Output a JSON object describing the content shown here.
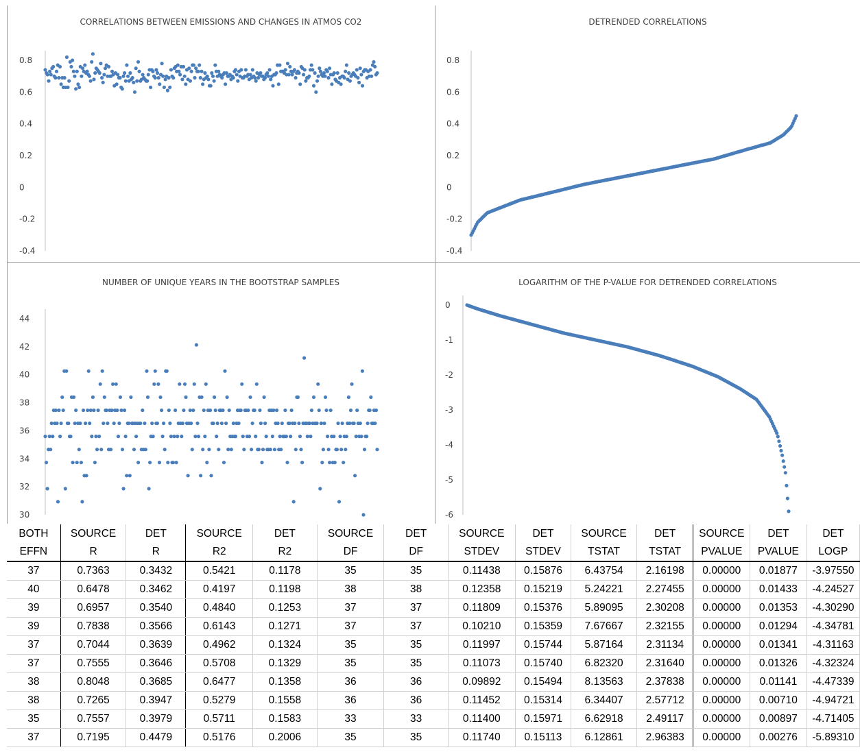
{
  "chart_data": [
    {
      "type": "scatter",
      "title": "CORRELATIONS  BETWEEN  EMISSIONS  AND  CHANGES   IN ATMOS  CO2",
      "ylim": [
        -0.4,
        0.8
      ],
      "yticks": [
        "0.8",
        "0.6",
        "0.4",
        "0.2",
        "0",
        "-0.2",
        "-0.4"
      ],
      "grid": false,
      "values": [
        0.74,
        0.72,
        0.71,
        0.67,
        0.73,
        0.71,
        0.75,
        0.76,
        0.7,
        0.69,
        0.73,
        0.77,
        0.69,
        0.76,
        0.65,
        0.69,
        0.63,
        0.69,
        0.63,
        0.82,
        0.63,
        0.67,
        0.79,
        0.76,
        0.8,
        0.73,
        0.7,
        0.62,
        0.73,
        0.65,
        0.63,
        0.76,
        0.7,
        0.75,
        0.73,
        0.77,
        0.72,
        0.73,
        0.71,
        0.7,
        0.67,
        0.79,
        0.84,
        0.68,
        0.72,
        0.75,
        0.74,
        0.73,
        0.72,
        0.78,
        0.69,
        0.66,
        0.71,
        0.75,
        0.77,
        0.7,
        0.76,
        0.7,
        0.7,
        0.73,
        0.71,
        0.64,
        0.72,
        0.65,
        0.71,
        0.69,
        0.69,
        0.63,
        0.62,
        0.7,
        0.72,
        0.67,
        0.77,
        0.7,
        0.67,
        0.72,
        0.68,
        0.69,
        0.66,
        0.6,
        0.75,
        0.67,
        0.79,
        0.73,
        0.67,
        0.68,
        0.71,
        0.69,
        0.68,
        0.67,
        0.67,
        0.71,
        0.74,
        0.63,
        0.74,
        0.73,
        0.7,
        0.69,
        0.74,
        0.72,
        0.69,
        0.65,
        0.71,
        0.78,
        0.7,
        0.63,
        0.68,
        0.7,
        0.61,
        0.69,
        0.63,
        0.74,
        0.7,
        0.69,
        0.75,
        0.76,
        0.73,
        0.77,
        0.73,
        0.71,
        0.76,
        0.68,
        0.76,
        0.7,
        0.65,
        0.74,
        0.68,
        0.75,
        0.67,
        0.73,
        0.77,
        0.77,
        0.69,
        0.75,
        0.73,
        0.73,
        0.77,
        0.69,
        0.73,
        0.65,
        0.68,
        0.72,
        0.69,
        0.7,
        0.68,
        0.64,
        0.64,
        0.72,
        0.7,
        0.67,
        0.77,
        0.73,
        0.7,
        0.73,
        0.71,
        0.7,
        0.69,
        0.71,
        0.72,
        0.65,
        0.72,
        0.7,
        0.7,
        0.71,
        0.68,
        0.7,
        0.69,
        0.73,
        0.74,
        0.71,
        0.67,
        0.73,
        0.7,
        0.74,
        0.69,
        0.69,
        0.7,
        0.74,
        0.7,
        0.71,
        0.68,
        0.71,
        0.69,
        0.74,
        0.7,
        0.69,
        0.67,
        0.72,
        0.69,
        0.71,
        0.72,
        0.7,
        0.7,
        0.68,
        0.69,
        0.71,
        0.72,
        0.7,
        0.74,
        0.68,
        0.7,
        0.64,
        0.71,
        0.71,
        0.72,
        0.77,
        0.65,
        0.77,
        0.73,
        0.73,
        0.73,
        0.72,
        0.74,
        0.71,
        0.78,
        0.71,
        0.76,
        0.73,
        0.71,
        0.73,
        0.74,
        0.69,
        0.72,
        0.73,
        0.72,
        0.65,
        0.76,
        0.75,
        0.71,
        0.74,
        0.67,
        0.69,
        0.69,
        0.7,
        0.74,
        0.77,
        0.74,
        0.64,
        0.72,
        0.6,
        0.67,
        0.7,
        0.75,
        0.73,
        0.71,
        0.7,
        0.72,
        0.7,
        0.74,
        0.73,
        0.69,
        0.75,
        0.71,
        0.65,
        0.71,
        0.72,
        0.68,
        0.67,
        0.72,
        0.66,
        0.69,
        0.65,
        0.7,
        0.7,
        0.69,
        0.73,
        0.77,
        0.68,
        0.72,
        0.67,
        0.7,
        0.71,
        0.72,
        0.71,
        0.7,
        0.74,
        0.69,
        0.66,
        0.75,
        0.71,
        0.64,
        0.73,
        0.74,
        0.74,
        0.69,
        0.73,
        0.7,
        0.74,
        0.7,
        0.77,
        0.79,
        0.76,
        0.71,
        0.72
      ]
    },
    {
      "type": "scatter",
      "title": "DETRENDED  CORRELATIONS",
      "ylim": [
        -0.4,
        0.8
      ],
      "yticks": [
        "0.8",
        "0.6",
        "0.4",
        "0.2",
        "0",
        "-0.2",
        "-0.4"
      ],
      "grid": false,
      "shape": "sorted ascending",
      "points": 300,
      "anchors": [
        [
          0,
          -0.3
        ],
        [
          0.02,
          -0.22
        ],
        [
          0.05,
          -0.16
        ],
        [
          0.1,
          -0.12
        ],
        [
          0.15,
          -0.08
        ],
        [
          0.25,
          -0.03
        ],
        [
          0.35,
          0.02
        ],
        [
          0.45,
          0.06
        ],
        [
          0.55,
          0.1
        ],
        [
          0.65,
          0.14
        ],
        [
          0.75,
          0.18
        ],
        [
          0.85,
          0.24
        ],
        [
          0.92,
          0.28
        ],
        [
          0.96,
          0.33
        ],
        [
          0.985,
          0.38
        ],
        [
          1,
          0.45
        ]
      ]
    },
    {
      "type": "scatter",
      "title": "NUMBER  OF UNIQUE  YEARS  IN THE  BOOTSTRAP  SAMPLES",
      "ylim": [
        30,
        45
      ],
      "yticks": [
        "44",
        "42",
        "40",
        "38",
        "36",
        "34",
        "32",
        "30"
      ],
      "grid": false,
      "values": [
        36,
        34,
        32,
        35,
        36,
        35,
        37,
        36,
        38,
        37,
        38,
        37,
        31,
        38,
        36,
        37,
        39,
        38,
        41,
        32,
        41,
        37,
        37,
        36,
        36,
        39,
        34,
        39,
        37,
        38,
        34,
        37,
        35,
        37,
        34,
        31,
        38,
        33,
        37,
        33,
        38,
        41,
        37,
        38,
        36,
        39,
        38,
        34,
        36,
        35,
        38,
        36,
        40,
        35,
        41,
        37,
        39,
        38,
        38,
        37,
        35,
        38,
        35,
        38,
        40,
        37,
        38,
        40,
        38,
        36,
        37,
        39,
        38,
        35,
        32,
        38,
        36,
        33,
        37,
        37,
        33,
        39,
        37,
        37,
        35,
        37,
        36,
        37,
        34,
        37,
        37,
        35,
        38,
        35,
        37,
        35,
        41,
        39,
        32,
        34,
        36,
        37,
        36,
        40,
        41,
        37,
        37,
        40,
        34,
        39,
        38,
        36,
        37,
        35,
        41,
        41,
        34,
        38,
        37,
        36,
        34,
        34,
        36,
        38,
        34,
        36,
        37,
        40,
        37,
        36,
        37,
        38,
        40,
        39,
        37,
        33,
        37,
        38,
        37,
        35,
        38,
        40,
        36,
        43,
        37,
        36,
        39,
        33,
        39,
        35,
        38,
        36,
        40,
        34,
        38,
        35,
        38,
        33,
        37,
        37,
        39,
        38,
        36,
        37,
        35,
        38,
        38,
        37,
        38,
        34,
        41,
        37,
        39,
        35,
        38,
        36,
        35,
        36,
        37,
        36,
        36,
        37,
        38,
        37,
        38,
        38,
        40,
        36,
        35,
        38,
        38,
        36,
        38,
        36,
        39,
        35,
        37,
        38,
        38,
        36,
        40,
        35,
        35,
        38,
        37,
        34,
        35,
        39,
        37,
        36,
        35,
        35,
        38,
        35,
        38,
        36,
        38,
        35,
        37,
        38,
        37,
        35,
        36,
        35,
        37,
        36,
        36,
        38,
        36,
        34,
        37,
        37,
        36,
        38,
        37,
        31,
        37,
        35,
        39,
        39,
        37,
        36,
        35,
        34,
        37,
        42,
        37,
        37,
        36,
        37,
        37,
        36,
        38,
        37,
        39,
        37,
        37,
        37,
        40,
        38,
        32,
        37,
        34,
        35,
        37,
        39,
        38,
        36,
        35,
        34,
        38,
        36,
        34,
        36,
        34,
        35,
        35,
        37,
        31,
        36,
        35,
        37,
        34,
        36,
        35,
        36,
        37,
        39,
        37,
        38,
        40,
        37,
        37,
        33,
        36,
        38,
        37,
        36,
        37,
        36,
        41,
        30,
        35,
        36,
        36,
        37,
        38,
        38,
        39,
        37,
        37,
        38,
        37,
        38,
        35
      ]
    },
    {
      "type": "scatter",
      "title": "LOGARITHM  OF THE  P-VALUE  FOR  DETRENDED  CORRELATIONS",
      "ylim": [
        -6,
        0
      ],
      "yticks": [
        "0",
        "-1",
        "-2",
        "-3",
        "-4",
        "-5",
        "-6"
      ],
      "grid": false,
      "shape": "sorted descending",
      "points": 300,
      "anchors": [
        [
          0,
          0
        ],
        [
          0.03,
          -0.1
        ],
        [
          0.1,
          -0.3
        ],
        [
          0.2,
          -0.55
        ],
        [
          0.3,
          -0.8
        ],
        [
          0.4,
          -1
        ],
        [
          0.5,
          -1.2
        ],
        [
          0.6,
          -1.45
        ],
        [
          0.7,
          -1.75
        ],
        [
          0.78,
          -2.05
        ],
        [
          0.85,
          -2.4
        ],
        [
          0.9,
          -2.7
        ],
        [
          0.94,
          -3.2
        ],
        [
          0.965,
          -3.7
        ],
        [
          0.98,
          -4.3
        ],
        [
          0.99,
          -4.8
        ],
        [
          1,
          -5.9
        ]
      ]
    }
  ],
  "table": {
    "header1": [
      "BOTH",
      "SOURCE",
      "DET",
      "SOURCE",
      "DET",
      "SOURCE",
      "DET",
      "SOURCE",
      "DET",
      "SOURCE",
      "DET",
      "SOURCE",
      "DET",
      "DET"
    ],
    "header2": [
      "EFFN",
      "R",
      "R",
      "R2",
      "R2",
      "DF",
      "DF",
      "STDEV",
      "STDEV",
      "TSTAT",
      "TSTAT",
      "PVALUE",
      "PVALUE",
      "LOGP"
    ],
    "rows": [
      [
        "37",
        "0.7363",
        "0.3432",
        "0.5421",
        "0.1178",
        "35",
        "35",
        "0.11438",
        "0.15876",
        "6.43754",
        "2.16198",
        "0.00000",
        "0.01877",
        "-3.97550"
      ],
      [
        "40",
        "0.6478",
        "0.3462",
        "0.4197",
        "0.1198",
        "38",
        "38",
        "0.12358",
        "0.15219",
        "5.24221",
        "2.27455",
        "0.00000",
        "0.01433",
        "-4.24527"
      ],
      [
        "39",
        "0.6957",
        "0.3540",
        "0.4840",
        "0.1253",
        "37",
        "37",
        "0.11809",
        "0.15376",
        "5.89095",
        "2.30208",
        "0.00000",
        "0.01353",
        "-4.30290"
      ],
      [
        "39",
        "0.7838",
        "0.3566",
        "0.6143",
        "0.1271",
        "37",
        "37",
        "0.10210",
        "0.15359",
        "7.67667",
        "2.32155",
        "0.00000",
        "0.01294",
        "-4.34781"
      ],
      [
        "37",
        "0.7044",
        "0.3639",
        "0.4962",
        "0.1324",
        "35",
        "35",
        "0.11997",
        "0.15744",
        "5.87164",
        "2.31134",
        "0.00000",
        "0.01341",
        "-4.31163"
      ],
      [
        "37",
        "0.7555",
        "0.3646",
        "0.5708",
        "0.1329",
        "35",
        "35",
        "0.11073",
        "0.15740",
        "6.82320",
        "2.31640",
        "0.00000",
        "0.01326",
        "-4.32324"
      ],
      [
        "38",
        "0.8048",
        "0.3685",
        "0.6477",
        "0.1358",
        "36",
        "36",
        "0.09892",
        "0.15494",
        "8.13563",
        "2.37838",
        "0.00000",
        "0.01141",
        "-4.47339"
      ],
      [
        "38",
        "0.7265",
        "0.3947",
        "0.5279",
        "0.1558",
        "36",
        "36",
        "0.11452",
        "0.15314",
        "6.34407",
        "2.57712",
        "0.00000",
        "0.00710",
        "-4.94721"
      ],
      [
        "35",
        "0.7557",
        "0.3979",
        "0.5711",
        "0.1583",
        "33",
        "33",
        "0.11400",
        "0.15971",
        "6.62918",
        "2.49117",
        "0.00000",
        "0.00897",
        "-4.71405"
      ],
      [
        "37",
        "0.7195",
        "0.4479",
        "0.5176",
        "0.2006",
        "35",
        "35",
        "0.11740",
        "0.15113",
        "6.12861",
        "2.96383",
        "0.00000",
        "0.00276",
        "-5.89310"
      ]
    ]
  },
  "colors": {
    "marker": "#4a7ebb",
    "caption": "#3b6fb6",
    "text": "#404040"
  }
}
